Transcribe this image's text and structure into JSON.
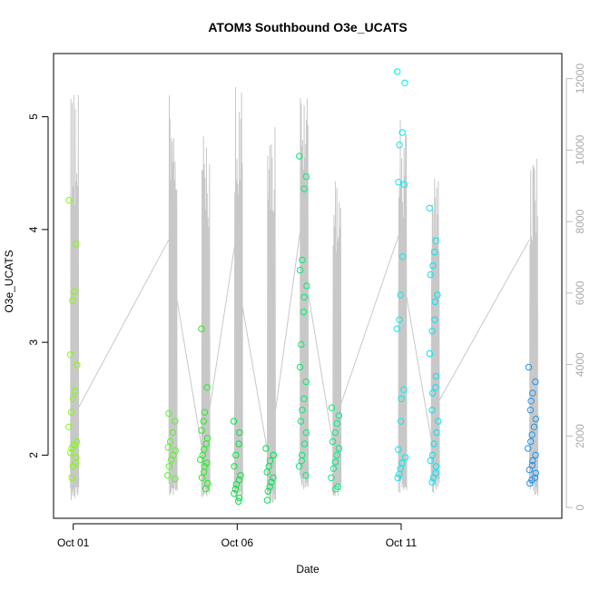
{
  "chart_data": {
    "type": "scatter",
    "title": "ATOM3 Southbound O3e_UCATS",
    "xlabel": "Date",
    "ylabel": "O3e_UCATS",
    "x_axis": {
      "type": "date",
      "range": [
        "2017-10-00.4",
        "2017-10-15.9"
      ],
      "ticks": [
        {
          "value": "2017-10-01",
          "label": "Oct 01"
        },
        {
          "value": "2017-10-06",
          "label": "Oct 06"
        },
        {
          "value": "2017-10-11",
          "label": "Oct 11"
        }
      ]
    },
    "y_axis": {
      "range": [
        1.44,
        5.56
      ],
      "ticks": [
        2,
        3,
        4,
        5
      ]
    },
    "y2_axis": {
      "range": [
        -300,
        12700
      ],
      "ticks": [
        0,
        2000,
        4000,
        6000,
        8000,
        10000,
        12000
      ],
      "color": "#bbbbbb"
    },
    "grid": false,
    "legend": "none",
    "marker": "open-circle",
    "altitude_color": "#c8c8c8",
    "series": [
      {
        "color": "#7fff00",
        "points": [
          {
            "t": "2017-10-01",
            "y": 4.26
          },
          {
            "t": "2017-10-01",
            "y": 3.87
          },
          {
            "t": "2017-10-01",
            "y": 3.45
          },
          {
            "t": "2017-10-01",
            "y": 3.37
          },
          {
            "t": "2017-10-01",
            "y": 2.89
          },
          {
            "t": "2017-10-01",
            "y": 2.8
          },
          {
            "t": "2017-10-01",
            "y": 2.57
          },
          {
            "t": "2017-10-01",
            "y": 2.5
          },
          {
            "t": "2017-10-01",
            "y": 2.38
          },
          {
            "t": "2017-10-01",
            "y": 2.25
          },
          {
            "t": "2017-10-01",
            "y": 2.12
          },
          {
            "t": "2017-10-01",
            "y": 2.09
          },
          {
            "t": "2017-10-01",
            "y": 2.06
          },
          {
            "t": "2017-10-01",
            "y": 2.02
          },
          {
            "t": "2017-10-01",
            "y": 1.98
          },
          {
            "t": "2017-10-01",
            "y": 1.93
          },
          {
            "t": "2017-10-01",
            "y": 1.9
          },
          {
            "t": "2017-10-01",
            "y": 1.8
          }
        ]
      },
      {
        "color": "#5bf52a",
        "points": [
          {
            "t": "2017-10-04",
            "y": 2.37
          },
          {
            "t": "2017-10-04",
            "y": 2.3
          },
          {
            "t": "2017-10-04",
            "y": 2.2
          },
          {
            "t": "2017-10-04",
            "y": 2.12
          },
          {
            "t": "2017-10-04",
            "y": 2.07
          },
          {
            "t": "2017-10-04",
            "y": 2.04
          },
          {
            "t": "2017-10-04",
            "y": 2.0
          },
          {
            "t": "2017-10-04",
            "y": 1.96
          },
          {
            "t": "2017-10-04",
            "y": 1.9
          },
          {
            "t": "2017-10-04",
            "y": 1.82
          },
          {
            "t": "2017-10-04",
            "y": 1.79
          }
        ]
      },
      {
        "color": "#22ee22",
        "points": [
          {
            "t": "2017-10-05",
            "y": 3.12
          },
          {
            "t": "2017-10-05",
            "y": 2.6
          },
          {
            "t": "2017-10-05",
            "y": 2.38
          },
          {
            "t": "2017-10-05",
            "y": 2.3
          },
          {
            "t": "2017-10-05",
            "y": 2.22
          },
          {
            "t": "2017-10-05",
            "y": 2.15
          },
          {
            "t": "2017-10-05",
            "y": 2.1
          },
          {
            "t": "2017-10-05",
            "y": 2.05
          },
          {
            "t": "2017-10-05",
            "y": 2.0
          },
          {
            "t": "2017-10-05",
            "y": 1.96
          },
          {
            "t": "2017-10-05",
            "y": 1.93
          },
          {
            "t": "2017-10-05",
            "y": 1.9
          },
          {
            "t": "2017-10-05",
            "y": 1.85
          },
          {
            "t": "2017-10-05",
            "y": 1.8
          },
          {
            "t": "2017-10-05",
            "y": 1.75
          },
          {
            "t": "2017-10-05",
            "y": 1.7
          }
        ]
      },
      {
        "color": "#00e640",
        "points": [
          {
            "t": "2017-10-06",
            "y": 2.3
          },
          {
            "t": "2017-10-06",
            "y": 2.2
          },
          {
            "t": "2017-10-06",
            "y": 2.1
          },
          {
            "t": "2017-10-06",
            "y": 2.0
          },
          {
            "t": "2017-10-06",
            "y": 1.9
          },
          {
            "t": "2017-10-06",
            "y": 1.82
          },
          {
            "t": "2017-10-06",
            "y": 1.78
          },
          {
            "t": "2017-10-06",
            "y": 1.74
          },
          {
            "t": "2017-10-06",
            "y": 1.7
          },
          {
            "t": "2017-10-06",
            "y": 1.66
          },
          {
            "t": "2017-10-06",
            "y": 1.62
          },
          {
            "t": "2017-10-06",
            "y": 1.59
          }
        ]
      },
      {
        "color": "#00e650",
        "points": [
          {
            "t": "2017-10-07",
            "y": 2.06
          },
          {
            "t": "2017-10-07",
            "y": 2.0
          },
          {
            "t": "2017-10-07",
            "y": 1.95
          },
          {
            "t": "2017-10-07",
            "y": 1.9
          },
          {
            "t": "2017-10-07",
            "y": 1.85
          },
          {
            "t": "2017-10-07",
            "y": 1.8
          },
          {
            "t": "2017-10-07",
            "y": 1.76
          },
          {
            "t": "2017-10-07",
            "y": 1.72
          },
          {
            "t": "2017-10-07",
            "y": 1.68
          },
          {
            "t": "2017-10-07",
            "y": 1.6
          }
        ]
      },
      {
        "color": "#00ee70",
        "points": [
          {
            "t": "2017-10-08",
            "y": 4.65
          },
          {
            "t": "2017-10-08",
            "y": 4.47
          },
          {
            "t": "2017-10-08",
            "y": 4.36
          },
          {
            "t": "2017-10-08",
            "y": 3.73
          },
          {
            "t": "2017-10-08",
            "y": 3.64
          },
          {
            "t": "2017-10-08",
            "y": 3.5
          },
          {
            "t": "2017-10-08",
            "y": 3.4
          },
          {
            "t": "2017-10-08",
            "y": 3.27
          },
          {
            "t": "2017-10-08",
            "y": 2.98
          },
          {
            "t": "2017-10-08",
            "y": 2.78
          },
          {
            "t": "2017-10-08",
            "y": 2.65
          },
          {
            "t": "2017-10-08",
            "y": 2.5
          },
          {
            "t": "2017-10-08",
            "y": 2.4
          },
          {
            "t": "2017-10-08",
            "y": 2.3
          },
          {
            "t": "2017-10-08",
            "y": 2.2
          },
          {
            "t": "2017-10-08",
            "y": 2.1
          },
          {
            "t": "2017-10-08",
            "y": 2.0
          },
          {
            "t": "2017-10-08",
            "y": 1.95
          },
          {
            "t": "2017-10-08",
            "y": 1.9
          },
          {
            "t": "2017-10-08",
            "y": 1.82
          }
        ]
      },
      {
        "color": "#00ee80",
        "points": [
          {
            "t": "2017-10-09",
            "y": 2.42
          },
          {
            "t": "2017-10-09",
            "y": 2.35
          },
          {
            "t": "2017-10-09",
            "y": 2.28
          },
          {
            "t": "2017-10-09",
            "y": 2.2
          },
          {
            "t": "2017-10-09",
            "y": 2.12
          },
          {
            "t": "2017-10-09",
            "y": 2.06
          },
          {
            "t": "2017-10-09",
            "y": 2.0
          },
          {
            "t": "2017-10-09",
            "y": 1.94
          },
          {
            "t": "2017-10-09",
            "y": 1.88
          },
          {
            "t": "2017-10-09",
            "y": 1.8
          },
          {
            "t": "2017-10-09",
            "y": 1.72
          },
          {
            "t": "2017-10-09",
            "y": 1.7
          }
        ]
      },
      {
        "color": "#00eeee",
        "points": [
          {
            "t": "2017-10-11",
            "y": 5.4
          },
          {
            "t": "2017-10-11",
            "y": 5.3
          },
          {
            "t": "2017-10-11",
            "y": 4.86
          },
          {
            "t": "2017-10-11",
            "y": 4.75
          },
          {
            "t": "2017-10-11",
            "y": 4.42
          },
          {
            "t": "2017-10-11",
            "y": 4.4
          },
          {
            "t": "2017-10-11",
            "y": 3.76
          },
          {
            "t": "2017-10-11",
            "y": 3.42
          },
          {
            "t": "2017-10-11",
            "y": 3.2
          },
          {
            "t": "2017-10-11",
            "y": 3.12
          },
          {
            "t": "2017-10-11",
            "y": 2.58
          },
          {
            "t": "2017-10-11",
            "y": 2.5
          },
          {
            "t": "2017-10-11",
            "y": 2.3
          },
          {
            "t": "2017-10-11",
            "y": 2.05
          },
          {
            "t": "2017-10-11",
            "y": 1.98
          },
          {
            "t": "2017-10-11",
            "y": 1.93
          },
          {
            "t": "2017-10-11",
            "y": 1.88
          },
          {
            "t": "2017-10-11",
            "y": 1.83
          },
          {
            "t": "2017-10-11",
            "y": 1.8
          }
        ]
      },
      {
        "color": "#00e6f5",
        "points": [
          {
            "t": "2017-10-12",
            "y": 4.19
          },
          {
            "t": "2017-10-12",
            "y": 3.9
          },
          {
            "t": "2017-10-12",
            "y": 3.8
          },
          {
            "t": "2017-10-12",
            "y": 3.68
          },
          {
            "t": "2017-10-12",
            "y": 3.6
          },
          {
            "t": "2017-10-12",
            "y": 3.42
          },
          {
            "t": "2017-10-12",
            "y": 3.36
          },
          {
            "t": "2017-10-12",
            "y": 3.2
          },
          {
            "t": "2017-10-12",
            "y": 3.1
          },
          {
            "t": "2017-10-12",
            "y": 2.9
          },
          {
            "t": "2017-10-12",
            "y": 2.7
          },
          {
            "t": "2017-10-12",
            "y": 2.6
          },
          {
            "t": "2017-10-12",
            "y": 2.55
          },
          {
            "t": "2017-10-12",
            "y": 2.4
          },
          {
            "t": "2017-10-12",
            "y": 2.3
          },
          {
            "t": "2017-10-12",
            "y": 2.2
          },
          {
            "t": "2017-10-12",
            "y": 2.1
          },
          {
            "t": "2017-10-12",
            "y": 2.0
          },
          {
            "t": "2017-10-12",
            "y": 1.95
          },
          {
            "t": "2017-10-12",
            "y": 1.9
          },
          {
            "t": "2017-10-12",
            "y": 1.84
          },
          {
            "t": "2017-10-12",
            "y": 1.8
          },
          {
            "t": "2017-10-12",
            "y": 1.76
          }
        ]
      },
      {
        "color": "#1e96f0",
        "points": [
          {
            "t": "2017-10-15",
            "y": 2.78
          },
          {
            "t": "2017-10-15",
            "y": 2.65
          },
          {
            "t": "2017-10-15",
            "y": 2.55
          },
          {
            "t": "2017-10-15",
            "y": 2.48
          },
          {
            "t": "2017-10-15",
            "y": 2.4
          },
          {
            "t": "2017-10-15",
            "y": 2.32
          },
          {
            "t": "2017-10-15",
            "y": 2.25
          },
          {
            "t": "2017-10-15",
            "y": 2.18
          },
          {
            "t": "2017-10-15",
            "y": 2.12
          },
          {
            "t": "2017-10-15",
            "y": 2.06
          },
          {
            "t": "2017-10-15",
            "y": 2.0
          },
          {
            "t": "2017-10-15",
            "y": 1.95
          },
          {
            "t": "2017-10-15",
            "y": 1.91
          },
          {
            "t": "2017-10-15",
            "y": 1.87
          },
          {
            "t": "2017-10-15",
            "y": 1.84
          },
          {
            "t": "2017-10-15",
            "y": 1.8
          },
          {
            "t": "2017-10-15",
            "y": 1.78
          },
          {
            "t": "2017-10-15",
            "y": 1.75
          }
        ]
      }
    ],
    "altitude_profiles": [
      {
        "t": "2017-10-01",
        "alt_max": 11600,
        "alt_min": 200
      },
      {
        "t": "2017-10-04",
        "alt_max": 11900,
        "alt_min": 300
      },
      {
        "t": "2017-10-05",
        "alt_max": 10700,
        "alt_min": 200
      },
      {
        "t": "2017-10-06",
        "alt_max": 12000,
        "alt_min": 100
      },
      {
        "t": "2017-10-07",
        "alt_max": 11000,
        "alt_min": 100
      },
      {
        "t": "2017-10-08",
        "alt_max": 11700,
        "alt_min": 500
      },
      {
        "t": "2017-10-09",
        "alt_max": 9200,
        "alt_min": 300
      },
      {
        "t": "2017-10-11",
        "alt_max": 11000,
        "alt_min": 400
      },
      {
        "t": "2017-10-12",
        "alt_max": 9800,
        "alt_min": 400
      },
      {
        "t": "2017-10-15",
        "alt_max": 10100,
        "alt_min": 300
      }
    ]
  }
}
